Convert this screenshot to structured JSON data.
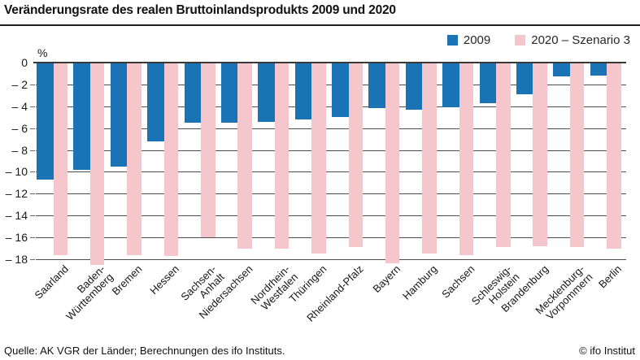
{
  "header": {
    "title": "Veränderungsrate des realen Bruttoinlandsprodukts 2009 und 2020"
  },
  "footer": {
    "source": "Quelle: AK VGR der Länder; Berechnungen des ifo Instituts.",
    "copyright": "© ifo Institut"
  },
  "chart_data": {
    "type": "bar",
    "title": "Veränderungsrate des realen Bruttoinlandsprodukts 2009 und 2020",
    "unit_label": "%",
    "ylabel": "%",
    "y_max": 0,
    "y_min": -18,
    "y_step": 2,
    "y_tick_labels": [
      "0",
      "– 2",
      "– 4",
      "– 6",
      "– 8",
      "– 10",
      "– 12",
      "– 14",
      "– 16",
      "– 18"
    ],
    "grid": true,
    "legend_position": "top-right",
    "categories": [
      "Saarland",
      "Baden-Württemberg",
      "Bremen",
      "Hessen",
      "Sachsen-Anhalt",
      "Niedersachsen",
      "Nordrhein-Westfalen",
      "Thüringen",
      "Rheinland-Pfalz",
      "Bayern",
      "Hamburg",
      "Sachsen",
      "Schleswig-Holstein",
      "Brandenburg",
      "Mecklenburg-Vorpommern",
      "Berlin"
    ],
    "category_label_lines": [
      [
        "Saarland"
      ],
      [
        "Baden-",
        "Württemberg"
      ],
      [
        "Bremen"
      ],
      [
        "Hessen"
      ],
      [
        "Sachsen-",
        "Anhalt"
      ],
      [
        "Niedersachsen"
      ],
      [
        "Nordrhein-",
        "Westfalen"
      ],
      [
        "Thüringen"
      ],
      [
        "Rheinland-Pfalz"
      ],
      [
        "Bayern"
      ],
      [
        "Hamburg"
      ],
      [
        "Sachsen"
      ],
      [
        "Schleswig-",
        "Holstein"
      ],
      [
        "Brandenburg"
      ],
      [
        "Mecklenburg-",
        "Vorpommern"
      ],
      [
        "Berlin"
      ]
    ],
    "series": [
      {
        "name": "2009",
        "color": "#1a73b5",
        "values": [
          -10.7,
          -9.8,
          -9.5,
          -7.2,
          -5.5,
          -5.5,
          -5.4,
          -5.2,
          -5.0,
          -4.2,
          -4.3,
          -4.1,
          -3.7,
          -2.9,
          -1.3,
          -1.2
        ]
      },
      {
        "name": "2020 – Szenario 3",
        "color": "#f5c6cc",
        "values": [
          -17.6,
          -18.5,
          -17.6,
          -17.7,
          -16.0,
          -17.0,
          -17.0,
          -17.5,
          -16.9,
          -18.4,
          -17.5,
          -17.6,
          -16.9,
          -16.8,
          -16.9,
          -17.0
        ]
      }
    ]
  }
}
